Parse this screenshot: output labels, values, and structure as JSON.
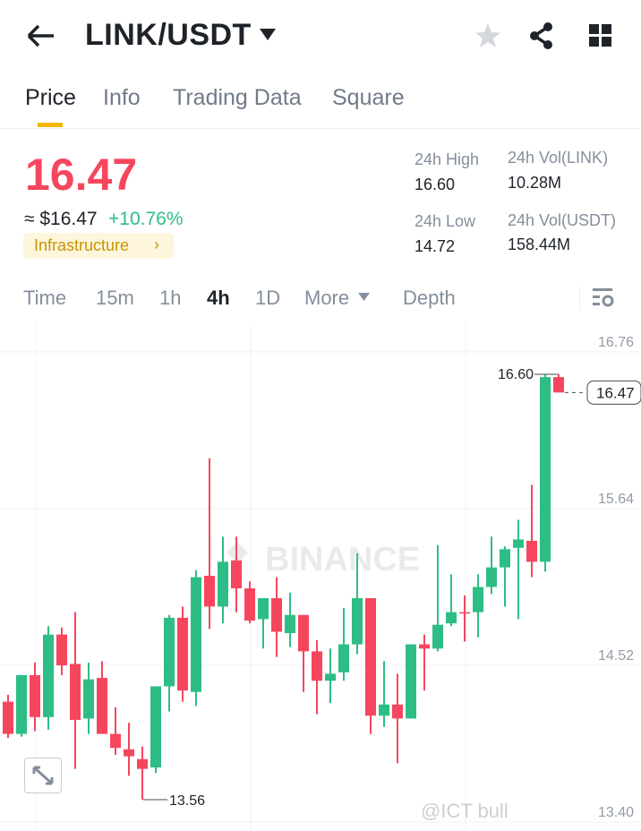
{
  "header": {
    "pair": "LINK/USDT",
    "icons": [
      "back-arrow-icon",
      "dropdown-caret-icon",
      "star-icon",
      "share-icon",
      "grid-icon"
    ]
  },
  "tabs": [
    {
      "label": "Price",
      "active": true
    },
    {
      "label": "Info"
    },
    {
      "label": "Trading Data"
    },
    {
      "label": "Square"
    }
  ],
  "ticker": {
    "price": "16.47",
    "usd_value": "≈ $16.47",
    "change": "+10.76%",
    "tag": "Infrastructure",
    "high_label": "24h High",
    "high": "16.60",
    "low_label": "24h Low",
    "low": "14.72",
    "vol_base_label": "24h Vol(LINK)",
    "vol_base": "10.28M",
    "vol_quote_label": "24h Vol(USDT)",
    "vol_quote": "158.44M"
  },
  "timeframes": [
    {
      "label": "Time"
    },
    {
      "label": "15m"
    },
    {
      "label": "1h"
    },
    {
      "label": "4h",
      "active": true
    },
    {
      "label": "1D"
    },
    {
      "label": "More"
    },
    {
      "label": "Depth"
    }
  ],
  "colors": {
    "up": "#2ebd85",
    "down": "#f6465d",
    "accent": "#f0b90b"
  },
  "watermark": {
    "logo": "BINANCE",
    "user": "@ICT bull"
  },
  "chart_data": {
    "type": "candlestick",
    "interval": "4h",
    "y_ticks": [
      "16.76",
      "15.64",
      "14.52",
      "13.40"
    ],
    "ylim": [
      13.4,
      16.76
    ],
    "high_marker": "16.60",
    "low_marker": "13.56",
    "last_price": "16.47",
    "candles": [
      [
        14.26,
        14.31,
        14.0,
        14.03
      ],
      [
        14.03,
        14.45,
        14.01,
        14.45
      ],
      [
        14.45,
        14.54,
        14.05,
        14.15
      ],
      [
        14.15,
        14.8,
        14.06,
        14.74
      ],
      [
        14.74,
        14.79,
        14.45,
        14.52
      ],
      [
        14.53,
        14.9,
        13.78,
        14.13
      ],
      [
        14.14,
        14.54,
        14.03,
        14.42
      ],
      [
        14.43,
        14.55,
        14.03,
        14.03
      ],
      [
        14.03,
        14.22,
        13.88,
        13.93
      ],
      [
        13.92,
        14.11,
        13.73,
        13.87
      ],
      [
        13.85,
        13.94,
        13.56,
        13.78
      ],
      [
        13.79,
        14.37,
        13.75,
        14.37
      ],
      [
        14.37,
        14.88,
        14.19,
        14.86
      ],
      [
        14.86,
        14.94,
        14.26,
        14.34
      ],
      [
        14.33,
        15.2,
        14.23,
        15.15
      ],
      [
        15.16,
        16.0,
        14.78,
        14.94
      ],
      [
        14.94,
        15.44,
        14.82,
        15.26
      ],
      [
        15.27,
        15.44,
        14.9,
        15.07
      ],
      [
        15.07,
        15.12,
        14.82,
        14.84
      ],
      [
        14.85,
        15.0,
        14.64,
        15.0
      ],
      [
        15.0,
        15.15,
        14.58,
        14.76
      ],
      [
        14.75,
        15.04,
        14.65,
        14.88
      ],
      [
        14.88,
        14.88,
        14.33,
        14.62
      ],
      [
        14.62,
        14.7,
        14.17,
        14.41
      ],
      [
        14.41,
        14.64,
        14.25,
        14.46
      ],
      [
        14.47,
        14.93,
        14.41,
        14.67
      ],
      [
        14.67,
        15.32,
        14.6,
        15.0
      ],
      [
        15.0,
        15.0,
        14.03,
        14.16
      ],
      [
        14.16,
        14.55,
        14.08,
        14.24
      ],
      [
        14.24,
        14.46,
        13.82,
        14.14
      ],
      [
        14.14,
        14.67,
        14.14,
        14.67
      ],
      [
        14.67,
        14.74,
        14.34,
        14.64
      ],
      [
        14.64,
        15.38,
        14.62,
        14.81
      ],
      [
        14.82,
        15.17,
        14.8,
        14.9
      ],
      [
        14.9,
        15.02,
        14.69,
        14.89
      ],
      [
        14.9,
        15.17,
        14.72,
        15.08
      ],
      [
        15.08,
        15.44,
        15.03,
        15.22
      ],
      [
        15.22,
        15.37,
        14.94,
        15.35
      ],
      [
        15.36,
        15.56,
        14.85,
        15.42
      ],
      [
        15.41,
        15.81,
        15.15,
        15.26
      ],
      [
        15.26,
        16.6,
        15.19,
        16.58
      ],
      [
        16.58,
        16.6,
        16.47,
        16.47
      ]
    ]
  }
}
